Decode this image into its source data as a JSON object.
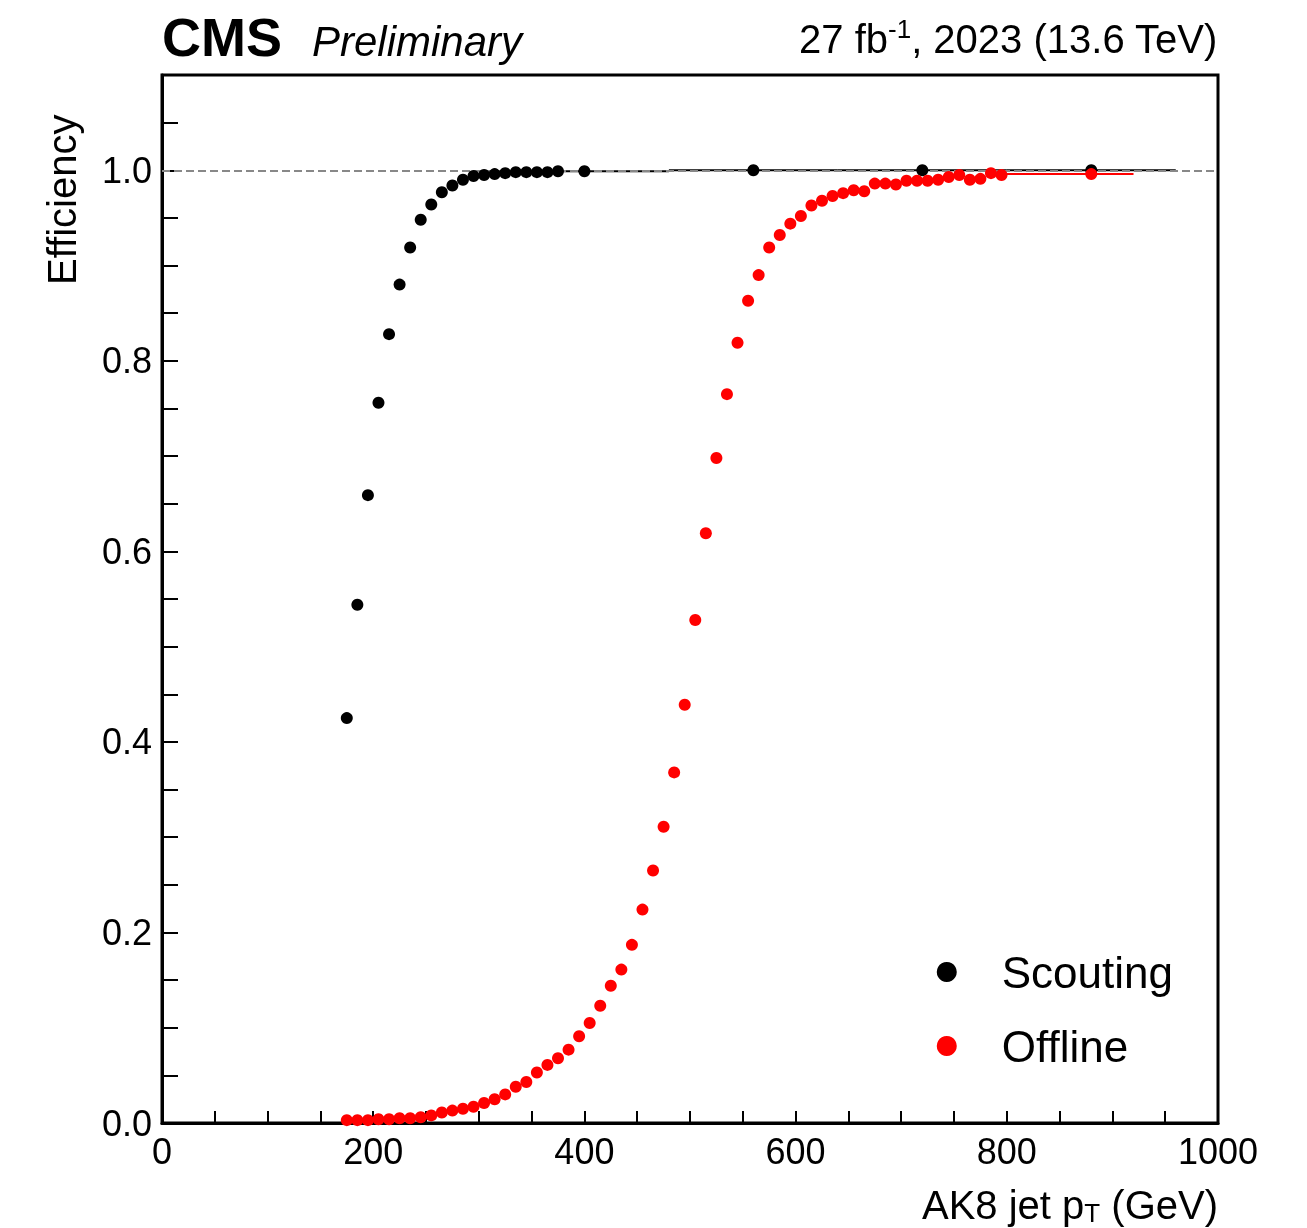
{
  "chart_data": {
    "type": "scatter",
    "title": "CMS",
    "subtitle": "Preliminary",
    "annotations": [
      "27 fb$^{-1}$, 2023 (13.6 TeV)"
    ],
    "xlabel": "AK8 jet p$_{T}$ (GeV)",
    "ylabel": "Efficiency",
    "series": [
      {
        "name": "Scouting",
        "color": "#000000",
        "x": [
          175,
          185,
          195,
          205,
          215,
          225,
          235,
          245,
          255,
          265,
          275,
          285,
          295,
          305,
          315,
          325,
          335,
          345,
          355,
          365,
          375,
          400,
          560,
          720,
          880
        ],
        "values": [
          0.425,
          0.544,
          0.659,
          0.756,
          0.828,
          0.88,
          0.919,
          0.948,
          0.964,
          0.977,
          0.984,
          0.99,
          0.994,
          0.995,
          0.996,
          0.997,
          0.998,
          0.998,
          0.998,
          0.998,
          0.999,
          0.999,
          1.0,
          1.0,
          1.0
        ],
        "xerrors": [
          null,
          null,
          null,
          null,
          null,
          null,
          null,
          null,
          null,
          null,
          null,
          null,
          null,
          null,
          null,
          null,
          null,
          null,
          null,
          null,
          null,
          [
            380,
            480
          ],
          [
            480,
            640
          ],
          [
            640,
            800
          ],
          [
            800,
            960
          ]
        ]
      },
      {
        "name": "Offline",
        "color": "#ff0000",
        "x": [
          175,
          185,
          195,
          205,
          215,
          225,
          235,
          245,
          255,
          265,
          275,
          285,
          295,
          305,
          315,
          325,
          335,
          345,
          355,
          365,
          375,
          385,
          395,
          405,
          415,
          425,
          435,
          445,
          455,
          465,
          475,
          485,
          495,
          505,
          515,
          525,
          535,
          545,
          555,
          565,
          575,
          585,
          595,
          605,
          615,
          625,
          635,
          645,
          655,
          665,
          675,
          685,
          695,
          705,
          715,
          725,
          735,
          745,
          755,
          765,
          775,
          785,
          795,
          880
        ],
        "values": [
          0.003,
          0.003,
          0.003,
          0.004,
          0.004,
          0.005,
          0.005,
          0.006,
          0.008,
          0.011,
          0.013,
          0.015,
          0.017,
          0.021,
          0.025,
          0.03,
          0.038,
          0.043,
          0.053,
          0.061,
          0.068,
          0.077,
          0.091,
          0.105,
          0.123,
          0.144,
          0.161,
          0.187,
          0.224,
          0.265,
          0.311,
          0.368,
          0.439,
          0.528,
          0.619,
          0.698,
          0.765,
          0.819,
          0.863,
          0.89,
          0.919,
          0.932,
          0.944,
          0.952,
          0.963,
          0.968,
          0.973,
          0.976,
          0.979,
          0.978,
          0.986,
          0.986,
          0.985,
          0.989,
          0.989,
          0.989,
          0.99,
          0.993,
          0.995,
          0.99,
          0.991,
          0.997,
          0.995,
          0.996
        ],
        "xerrors": [
          null,
          null,
          null,
          null,
          null,
          null,
          null,
          null,
          null,
          null,
          null,
          null,
          null,
          null,
          null,
          null,
          null,
          null,
          null,
          null,
          null,
          null,
          null,
          null,
          null,
          null,
          null,
          null,
          null,
          null,
          null,
          null,
          null,
          null,
          null,
          null,
          null,
          null,
          null,
          null,
          null,
          null,
          null,
          null,
          null,
          null,
          null,
          null,
          null,
          null,
          null,
          null,
          null,
          null,
          null,
          null,
          null,
          null,
          null,
          null,
          null,
          null,
          null,
          [
            800,
            920
          ]
        ]
      }
    ],
    "xlim": [
      0,
      1000
    ],
    "xticks": [
      0,
      {
        "value": 50,
        "label": null
      },
      {
        "value": 100,
        "label": null
      },
      {
        "value": 150,
        "label": null
      },
      200,
      {
        "value": 250,
        "label": null
      },
      {
        "value": 300,
        "label": null
      },
      {
        "value": 350,
        "label": null
      },
      400,
      {
        "value": 450,
        "label": null
      },
      {
        "value": 500,
        "label": null
      },
      {
        "value": 550,
        "label": null
      },
      600,
      {
        "value": 650,
        "label": null
      },
      {
        "value": 700,
        "label": null
      },
      {
        "value": 750,
        "label": null
      },
      800,
      {
        "value": 850,
        "label": null
      },
      {
        "value": 900,
        "label": null
      },
      {
        "value": 950,
        "label": null
      },
      1000
    ],
    "ylim": [
      0,
      1.1
    ],
    "yticks": [
      {
        "value": 0,
        "label": "0.0"
      },
      {
        "value": 0.05,
        "label": null
      },
      {
        "value": 0.1,
        "label": null
      },
      {
        "value": 0.15,
        "label": null
      },
      {
        "value": 0.2,
        "label": "0.2"
      },
      {
        "value": 0.25,
        "label": null
      },
      {
        "value": 0.3,
        "label": null
      },
      {
        "value": 0.35,
        "label": null
      },
      {
        "value": 0.4,
        "label": "0.4"
      },
      {
        "value": 0.45,
        "label": null
      },
      {
        "value": 0.5,
        "label": null
      },
      {
        "value": 0.55,
        "label": null
      },
      {
        "value": 0.6,
        "label": "0.6"
      },
      {
        "value": 0.65,
        "label": null
      },
      {
        "value": 0.7,
        "label": null
      },
      {
        "value": 0.75,
        "label": null
      },
      {
        "value": 0.8,
        "label": "0.8"
      },
      {
        "value": 0.85,
        "label": null
      },
      {
        "value": 0.9,
        "label": null
      },
      {
        "value": 0.95,
        "label": null
      },
      {
        "value": 1.0,
        "label": "1.0"
      },
      {
        "value": 1.05,
        "label": null
      }
    ],
    "ref_lines": [
      {
        "axis": "y",
        "value": 1.0,
        "color": "#888888",
        "line_style": "dashed"
      }
    ],
    "marker": "circle",
    "legend": "bottom right",
    "grid": false
  }
}
